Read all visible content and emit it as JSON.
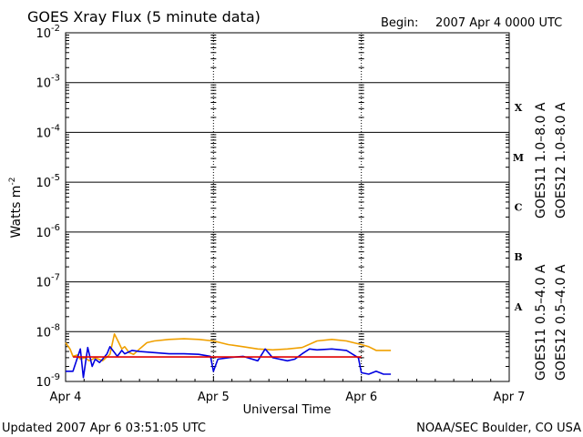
{
  "chart_data": {
    "type": "line",
    "title": "GOES Xray Flux (5 minute data)",
    "begin_label": "Begin:",
    "begin_value": "2007 Apr 4 0000 UTC",
    "ylabel": "Watts m",
    "ylabel_sup": "-2",
    "y_scale": "log",
    "ylim": [
      1e-09,
      0.01
    ],
    "y_ticks": [
      {
        "base": "10",
        "exp": "-2"
      },
      {
        "base": "10",
        "exp": "-3"
      },
      {
        "base": "10",
        "exp": "-4"
      },
      {
        "base": "10",
        "exp": "-5"
      },
      {
        "base": "10",
        "exp": "-6"
      },
      {
        "base": "10",
        "exp": "-7"
      },
      {
        "base": "10",
        "exp": "-8"
      },
      {
        "base": "10",
        "exp": "-9"
      }
    ],
    "xlabel": "Universal Time",
    "xlim_days": [
      0,
      3
    ],
    "x_tick_labels": [
      "Apr 4",
      "Apr 5",
      "Apr 6",
      "Apr 7"
    ],
    "flare_classes": [
      {
        "label": "X",
        "flux": 0.0001
      },
      {
        "label": "M",
        "flux": 1e-05
      },
      {
        "label": "C",
        "flux": 1e-06
      },
      {
        "label": "B",
        "flux": 1e-07
      },
      {
        "label": "A",
        "flux": 1e-08
      }
    ],
    "legend_right": [
      {
        "name": "GOES11 1.0–8.0 A",
        "color": "#6a0dad"
      },
      {
        "name": "GOES12 1.0–8.0 A",
        "color": "#e00000"
      }
    ],
    "legend_right2": [
      {
        "name": "GOES11 0.5–4.0 A",
        "color": "#f0a000"
      },
      {
        "name": "GOES12 0.5–4.0 A",
        "color": "#0000e0"
      }
    ],
    "series": [
      {
        "name": "GOES11 0.5–4.0 A",
        "color": "#f0a000",
        "x": [
          0,
          0.03,
          0.05,
          0.08,
          0.1,
          0.13,
          0.16,
          0.2,
          0.25,
          0.3,
          0.33,
          0.36,
          0.38,
          0.4,
          0.43,
          0.46,
          0.5,
          0.55,
          0.6,
          0.7,
          0.8,
          0.9,
          1.0,
          1.1,
          1.2,
          1.3,
          1.4,
          1.5,
          1.6,
          1.7,
          1.8,
          1.9,
          2.0,
          2.05,
          2.1,
          2.15,
          2.2
        ],
        "y": [
          6e-09,
          4.5e-09,
          3.2e-09,
          3.4e-09,
          2.8e-09,
          3e-09,
          2.6e-09,
          3e-09,
          2.6e-09,
          3.5e-09,
          9e-09,
          6e-09,
          4.5e-09,
          5e-09,
          3.8e-09,
          3.5e-09,
          4.5e-09,
          6e-09,
          6.5e-09,
          7e-09,
          7.2e-09,
          7e-09,
          6.5e-09,
          5.5e-09,
          5e-09,
          4.5e-09,
          4.3e-09,
          4.5e-09,
          4.8e-09,
          6.5e-09,
          7e-09,
          6.5e-09,
          5.5e-09,
          5e-09,
          4.2e-09,
          4.2e-09,
          4.2e-09
        ]
      },
      {
        "name": "GOES12 0.5–4.0 A",
        "color": "#0000e0",
        "x": [
          0,
          0.05,
          0.1,
          0.12,
          0.15,
          0.18,
          0.2,
          0.23,
          0.25,
          0.28,
          0.3,
          0.35,
          0.38,
          0.4,
          0.45,
          0.5,
          0.6,
          0.7,
          0.8,
          0.9,
          0.98,
          1.0,
          1.03,
          1.1,
          1.2,
          1.3,
          1.35,
          1.4,
          1.5,
          1.55,
          1.6,
          1.65,
          1.7,
          1.8,
          1.9,
          1.98,
          2.0,
          2.05,
          2.1,
          2.15,
          2.2
        ],
        "y": [
          1.6e-09,
          1.6e-09,
          4.5e-09,
          1.2e-09,
          4.8e-09,
          2e-09,
          2.8e-09,
          2.4e-09,
          2.8e-09,
          3.6e-09,
          5e-09,
          3.2e-09,
          4.2e-09,
          3.6e-09,
          4.2e-09,
          4e-09,
          3.8e-09,
          3.6e-09,
          3.6e-09,
          3.5e-09,
          3.2e-09,
          1.6e-09,
          2.8e-09,
          3e-09,
          3.2e-09,
          2.6e-09,
          4.5e-09,
          3e-09,
          2.6e-09,
          2.8e-09,
          3.6e-09,
          4.5e-09,
          4.3e-09,
          4.5e-09,
          4.2e-09,
          3e-09,
          1.5e-09,
          1.4e-09,
          1.6e-09,
          1.4e-09,
          1.4e-09
        ]
      },
      {
        "name": "GOES12 1.0–8.0 A",
        "color": "#e00000",
        "x": [
          0.05,
          0.5,
          1.0,
          1.5,
          2.0
        ],
        "y": [
          3.1e-09,
          3.1e-09,
          3.1e-09,
          3.1e-09,
          3.1e-09
        ]
      }
    ]
  },
  "footer": {
    "updated": "Updated 2007 Apr  6 03:51:05 UTC",
    "source": "NOAA/SEC Boulder, CO USA"
  }
}
